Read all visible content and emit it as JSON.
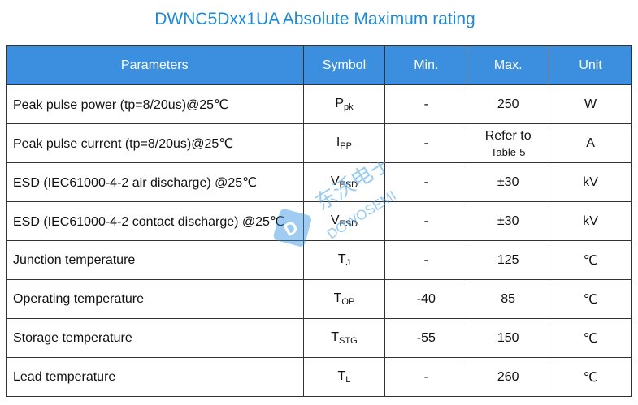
{
  "header": {
    "title": "DWNC5Dxx1UA Absolute Maximum rating"
  },
  "table": {
    "headers": [
      "Parameters",
      "Symbol",
      "Min.",
      "Max.",
      "Unit"
    ],
    "rows": [
      {
        "parameter": "Peak pulse power (tp=8/20us)@25℃",
        "symbol": {
          "main": "P",
          "sub": "pk"
        },
        "min": "-",
        "max": "250",
        "unit": "W"
      },
      {
        "parameter": "Peak pulse current (tp=8/20us)@25℃",
        "symbol": {
          "main": "I",
          "sub": "PP"
        },
        "min": "-",
        "max": [
          "Refer to",
          "Table-5"
        ],
        "unit": "A"
      },
      {
        "parameter": "ESD (IEC61000-4-2 air discharge) @25℃",
        "symbol": {
          "main": "V",
          "sub": "ESD"
        },
        "min": "-",
        "max": "±30",
        "unit": "kV"
      },
      {
        "parameter": "ESD (IEC61000-4-2 contact discharge) @25℃",
        "symbol": {
          "main": "V",
          "sub": "ESD"
        },
        "min": "-",
        "max": "±30",
        "unit": "kV"
      },
      {
        "parameter": "Junction temperature",
        "symbol": {
          "main": "T",
          "sub": "J"
        },
        "min": "-",
        "max": "125",
        "unit": "℃"
      },
      {
        "parameter": "Operating temperature",
        "symbol": {
          "main": "T",
          "sub": "OP"
        },
        "min": "-40",
        "max": "85",
        "unit": "℃"
      },
      {
        "parameter": "Storage temperature",
        "symbol": {
          "main": "T",
          "sub": "STG"
        },
        "min": "-55",
        "max": "150",
        "unit": "℃"
      },
      {
        "parameter": "Lead temperature",
        "symbol": {
          "main": "T",
          "sub": "L"
        },
        "min": "-",
        "max": "260",
        "unit": "℃"
      }
    ]
  },
  "watermark": {
    "text": "东沃电子",
    "subtext": "DOWOSEMI"
  }
}
